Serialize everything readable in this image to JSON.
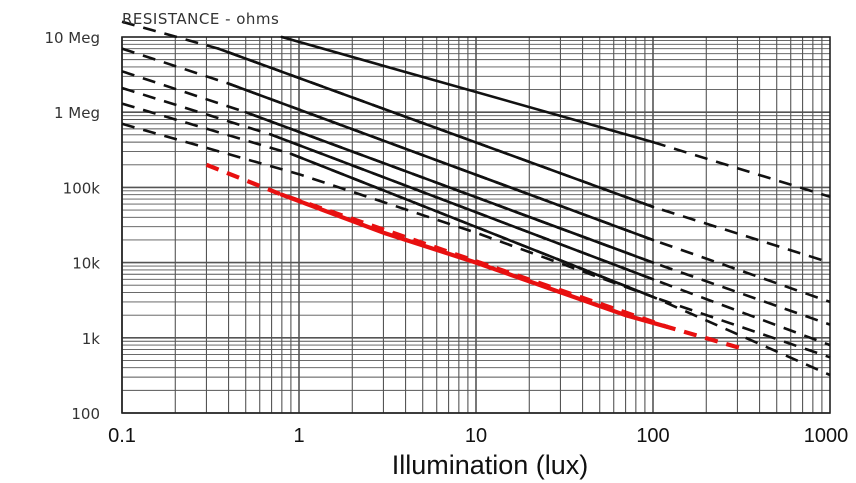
{
  "chart_data": {
    "type": "line",
    "title": "RESISTANCE - ohms",
    "xlabel": "Illumination (lux)",
    "ylabel": "",
    "x_scale": "log",
    "y_scale": "log",
    "xlim": [
      0.1,
      1000
    ],
    "ylim": [
      100,
      10000000
    ],
    "x_tick_values": [
      0.1,
      1,
      10,
      100,
      1000
    ],
    "x_tick_labels": [
      "0.1",
      "1",
      "10",
      "100",
      "1000"
    ],
    "y_tick_values": [
      100,
      1000,
      10000,
      100000,
      1000000,
      10000000
    ],
    "y_tick_labels": [
      "100",
      "1k",
      "10k",
      "100k",
      "1 Meg",
      "10 Meg"
    ],
    "grid": true,
    "colors": {
      "black": "#111111",
      "red": "#e81010",
      "grid": "#555555"
    },
    "series": [
      {
        "color": "#111111",
        "solid": [
          [
            0.8,
            10000000
          ],
          [
            100,
            400000
          ]
        ],
        "dashed": [
          [
            100,
            400000
          ],
          [
            1000,
            75000
          ]
        ]
      },
      {
        "color": "#111111",
        "solid": [
          [
            0.35,
            7000000
          ],
          [
            100,
            55000
          ]
        ],
        "dashed": [
          [
            0.1,
            16000000
          ],
          [
            0.35,
            7000000
          ],
          [
            100,
            55000
          ],
          [
            1000,
            10000
          ]
        ]
      },
      {
        "color": "#111111",
        "solid": [
          [
            0.4,
            2400000
          ],
          [
            100,
            20000
          ]
        ],
        "dashed": [
          [
            0.1,
            7000000
          ],
          [
            0.4,
            2400000
          ],
          [
            100,
            20000
          ],
          [
            1000,
            3000
          ]
        ]
      },
      {
        "color": "#111111",
        "solid": [
          [
            0.5,
            1000000
          ],
          [
            100,
            10000
          ]
        ],
        "dashed": [
          [
            0.1,
            3500000
          ],
          [
            0.5,
            1000000
          ],
          [
            100,
            10000
          ],
          [
            1000,
            1500
          ]
        ]
      },
      {
        "color": "#111111",
        "solid": [
          [
            0.7,
            500000
          ],
          [
            100,
            6000
          ]
        ],
        "dashed": [
          [
            0.1,
            2100000
          ],
          [
            0.7,
            500000
          ],
          [
            100,
            6000
          ],
          [
            1000,
            800
          ]
        ]
      },
      {
        "color": "#111111",
        "solid": [
          [
            0.9,
            280000
          ],
          [
            100,
            3500
          ]
        ],
        "dashed": [
          [
            0.1,
            1300000
          ],
          [
            0.9,
            280000
          ],
          [
            100,
            3500
          ],
          [
            1000,
            550
          ]
        ]
      },
      {
        "color": "#111111",
        "solid": [],
        "dashed": [
          [
            0.1,
            700000
          ],
          [
            1,
            150000
          ],
          [
            10,
            25000
          ],
          [
            100,
            3500
          ],
          [
            1000,
            320
          ]
        ]
      },
      {
        "color": "#e81010",
        "solid": [
          [
            0.8,
            80000
          ],
          [
            3,
            25000
          ],
          [
            10,
            10000
          ],
          [
            70,
            2000
          ],
          [
            120,
            1400
          ]
        ],
        "dashed": [
          [
            0.3,
            200000
          ],
          [
            0.8,
            80000
          ],
          [
            120,
            1400
          ],
          [
            330,
            700
          ]
        ]
      }
    ]
  }
}
